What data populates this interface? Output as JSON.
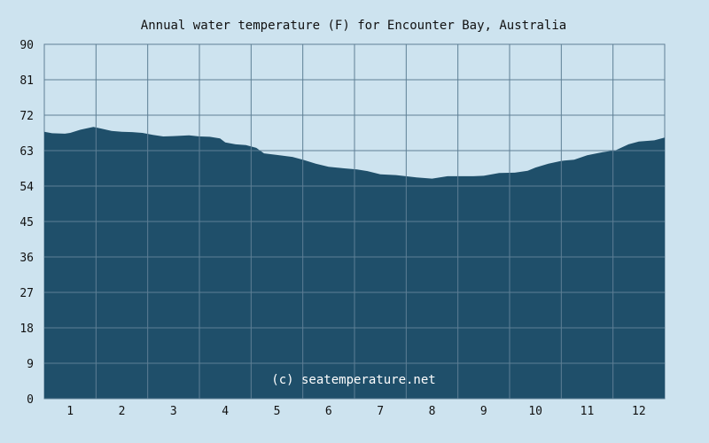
{
  "chart_data": {
    "type": "area",
    "title": "Annual water temperature (F) for Encounter Bay, Australia",
    "xlabel": "",
    "ylabel": "",
    "x_ticks": [
      "1",
      "2",
      "3",
      "4",
      "5",
      "6",
      "7",
      "8",
      "9",
      "10",
      "11",
      "12"
    ],
    "y_ticks": [
      "0",
      "9",
      "18",
      "27",
      "36",
      "45",
      "54",
      "63",
      "72",
      "81",
      "90"
    ],
    "ylim": [
      0,
      90
    ],
    "xlim": [
      0.5,
      12.5
    ],
    "grid": true,
    "credit": "(c) seatemperature.net",
    "colors": {
      "background": "#cde3ef",
      "fill": "#1f4f6a",
      "grid": "#5e7f95"
    },
    "series": [
      {
        "x": [
          0.5,
          0.65,
          0.9,
          1.0,
          1.2,
          1.45,
          1.6,
          1.8,
          2.0,
          2.2,
          2.4,
          2.6,
          2.8,
          3.0,
          3.3,
          3.5,
          3.7,
          3.9,
          4.0,
          4.2,
          4.4,
          4.6,
          4.75,
          5.0,
          5.3,
          5.5,
          5.75,
          6.0,
          6.3,
          6.55,
          6.75,
          7.0,
          7.3,
          7.55,
          7.7,
          8.0,
          8.3,
          8.5,
          8.8,
          9.0,
          9.3,
          9.6,
          9.85,
          10.0,
          10.25,
          10.5,
          10.75,
          11.0,
          11.3,
          11.55,
          11.8,
          12.0,
          12.3,
          12.5
        ],
        "y": [
          67.8,
          67.4,
          67.3,
          67.5,
          68.3,
          69.0,
          68.6,
          68.0,
          67.8,
          67.7,
          67.5,
          67.0,
          66.6,
          66.7,
          66.9,
          66.6,
          66.5,
          66.1,
          65.1,
          64.6,
          64.4,
          63.7,
          62.3,
          61.9,
          61.4,
          60.7,
          59.7,
          58.9,
          58.5,
          58.2,
          57.8,
          57.0,
          56.8,
          56.4,
          56.2,
          55.9,
          56.5,
          56.5,
          56.5,
          56.6,
          57.3,
          57.4,
          57.9,
          58.7,
          59.7,
          60.4,
          60.7,
          61.8,
          62.6,
          63.1,
          64.6,
          65.3,
          65.6,
          66.3
        ]
      }
    ]
  }
}
